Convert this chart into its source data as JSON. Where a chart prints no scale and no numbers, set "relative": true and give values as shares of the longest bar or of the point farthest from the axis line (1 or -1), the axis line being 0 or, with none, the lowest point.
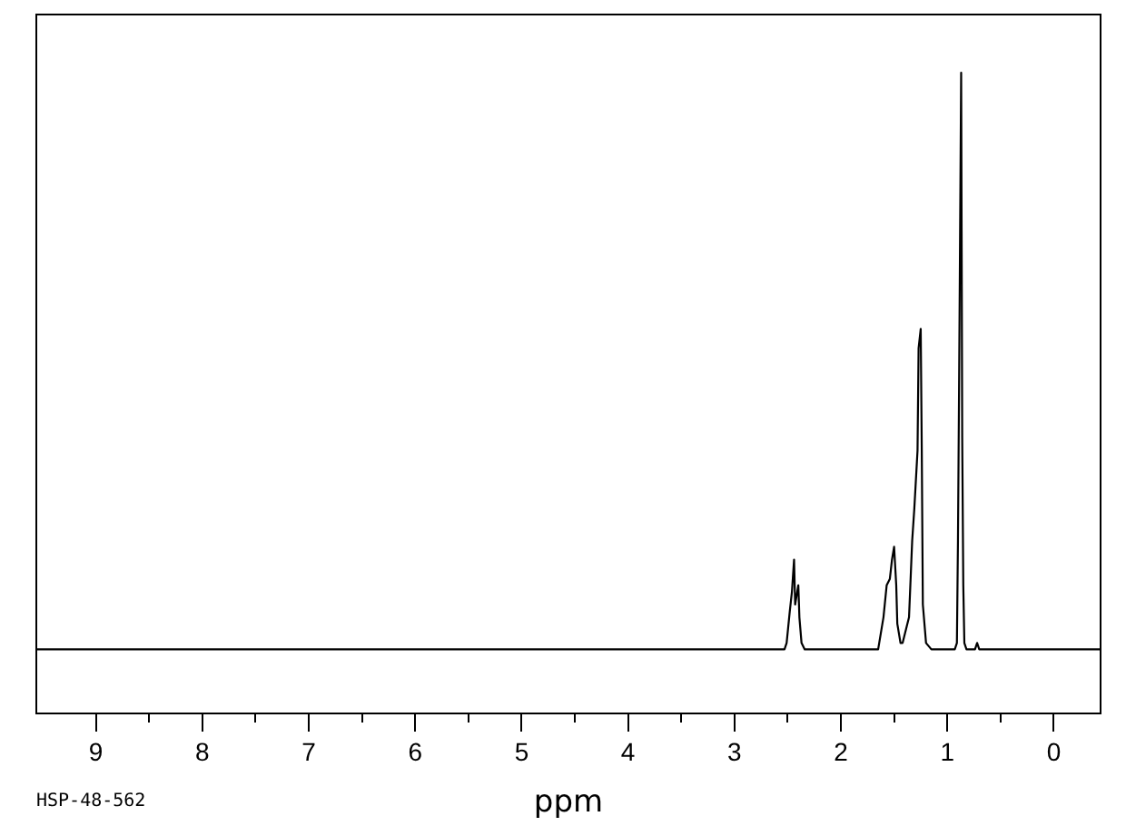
{
  "chart_data": {
    "type": "line",
    "relative": true,
    "xlabel": "ppm",
    "annotations": [
      "HSP-48-562"
    ],
    "xlim": [
      9.56,
      -0.44
    ],
    "xticks": [
      9,
      {
        "value": 8.5,
        "label": null
      },
      8,
      {
        "value": 7.5,
        "label": null
      },
      7,
      {
        "value": 6.5,
        "label": null
      },
      6,
      {
        "value": 5.5,
        "label": null
      },
      5,
      {
        "value": 4.5,
        "label": null
      },
      4,
      {
        "value": 3.5,
        "label": null
      },
      3,
      {
        "value": 2.5,
        "label": null
      },
      2,
      {
        "value": 1.5,
        "label": null
      },
      1,
      {
        "value": 0.5,
        "label": null
      },
      0
    ],
    "x": [
      9.56,
      2.53,
      2.51,
      2.48,
      2.46,
      2.44,
      2.43,
      2.4,
      2.39,
      2.37,
      2.34,
      1.65,
      1.6,
      1.57,
      1.54,
      1.52,
      1.5,
      1.48,
      1.47,
      1.44,
      1.42,
      1.36,
      1.33,
      1.31,
      1.28,
      1.27,
      1.25,
      1.24,
      1.23,
      1.2,
      1.15,
      0.93,
      0.91,
      0.9,
      0.89,
      0.87,
      0.86,
      0.85,
      0.84,
      0.82,
      0.74,
      0.72,
      0.7,
      -0.44
    ],
    "series": [
      {
        "color": "#000000",
        "values": [
          0.1,
          0.1,
          0.11,
          0.16,
          0.19,
          0.24,
          0.17,
          0.2,
          0.15,
          0.11,
          0.1,
          0.1,
          0.15,
          0.2,
          0.21,
          0.24,
          0.26,
          0.2,
          0.14,
          0.11,
          0.11,
          0.15,
          0.27,
          0.32,
          0.41,
          0.57,
          0.6,
          0.41,
          0.17,
          0.11,
          0.1,
          0.1,
          0.11,
          0.27,
          0.5,
          1,
          0.43,
          0.2,
          0.11,
          0.1,
          0.1,
          0.11,
          0.1,
          0.1
        ]
      }
    ]
  }
}
